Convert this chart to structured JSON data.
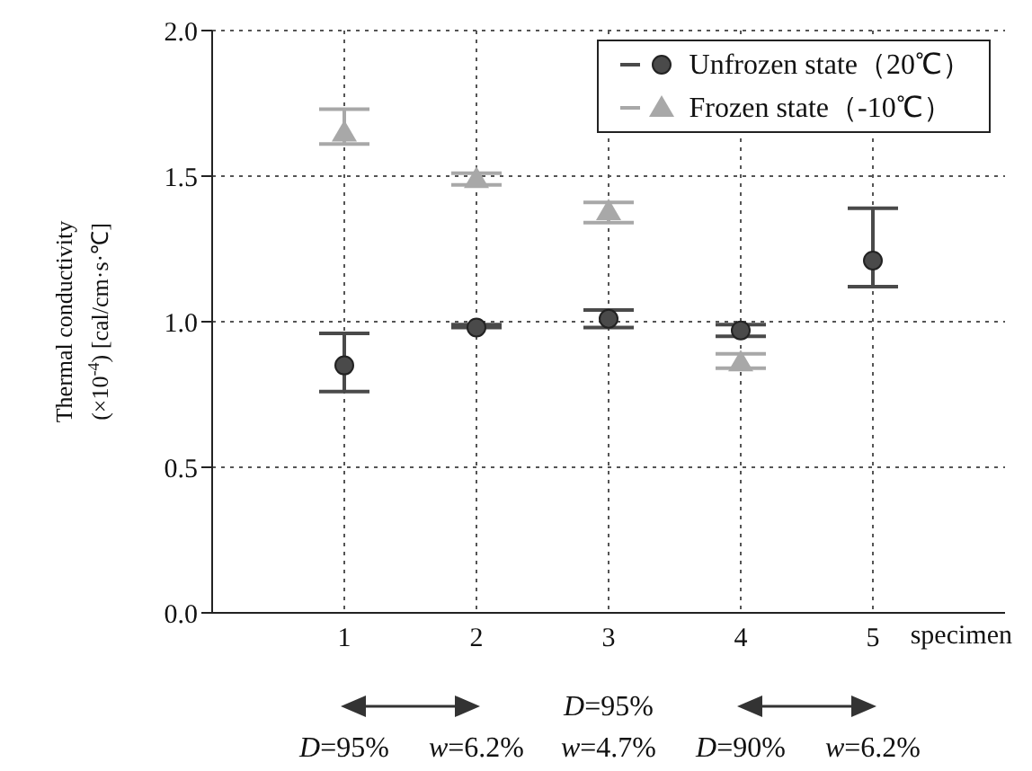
{
  "chart_data": {
    "type": "scatter",
    "xlabel": "specimen",
    "ylabel": "Thermal conductivity\n(×10$^{-4}$)  [cal/cm·s·℃]",
    "x": [
      1,
      2,
      3,
      4,
      5
    ],
    "series": [
      {
        "name": "Unfrozen state（20℃）",
        "color": "#4a4a4a",
        "marker": "circle",
        "values": [
          0.85,
          0.98,
          1.01,
          0.97,
          1.21
        ],
        "errors": [
          [
            0.76,
            0.96
          ],
          [
            0.98,
            0.99
          ],
          [
            0.98,
            1.04
          ],
          [
            0.95,
            0.99
          ],
          [
            1.12,
            1.39
          ]
        ]
      },
      {
        "name": "Frozen state（-10℃）",
        "color": "#a8a8a8",
        "marker": "triangle",
        "values": [
          1.65,
          1.49,
          1.38,
          0.86,
          null
        ],
        "errors": [
          [
            1.61,
            1.73
          ],
          [
            1.47,
            1.51
          ],
          [
            1.34,
            1.41
          ],
          [
            0.84,
            0.89
          ],
          null
        ]
      }
    ],
    "xlim": [
      0,
      6
    ],
    "xticks": [
      1,
      2,
      3,
      4,
      5
    ],
    "ylim": [
      0,
      2
    ],
    "yticks": [
      {
        "value": 0,
        "label": "0.0"
      },
      {
        "value": 0.5,
        "label": "0.5"
      },
      {
        "value": 1,
        "label": "1.0"
      },
      {
        "value": 1.5,
        "label": "1.5"
      },
      {
        "value": 2,
        "label": "2.0"
      }
    ],
    "grid": true,
    "legend": "top right",
    "annotations": [
      "D=95%",
      "w=6.2%",
      "D=95%",
      "w=4.7%",
      "D=90%",
      "w=6.2%"
    ]
  }
}
